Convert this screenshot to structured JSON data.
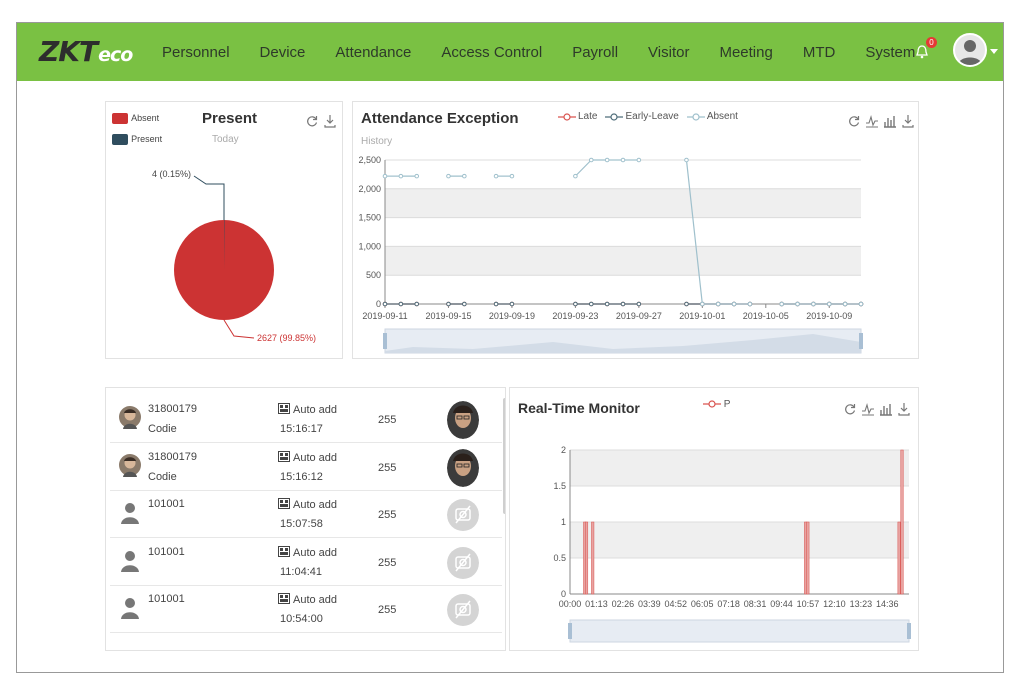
{
  "header": {
    "logo_main": "ZKT",
    "logo_sub": "eco",
    "nav": [
      "Personnel",
      "Device",
      "Attendance",
      "Access Control",
      "Payroll",
      "Visitor",
      "Meeting",
      "MTD",
      "System"
    ],
    "notification_count": "0"
  },
  "present_panel": {
    "title": "Present",
    "subtitle": "Today",
    "legend": [
      "Absent",
      "Present"
    ],
    "colors": {
      "absent": "#cc3333",
      "present": "#2f4d5e"
    },
    "label_present": "4 (0.15%)",
    "label_absent": "2627 (99.85%)"
  },
  "exception_panel": {
    "title": "Attendance Exception",
    "subtitle": "History",
    "legend": [
      "Late",
      "Early-Leave",
      "Absent"
    ],
    "colors": {
      "late": "#d9534f",
      "early_leave": "#4f6d7a",
      "absent": "#9fc0cc"
    }
  },
  "monitor_panel": {
    "title": "Real-Time Monitor",
    "legend": [
      "P"
    ],
    "color": "#d9534f"
  },
  "records": [
    {
      "id": "31800179",
      "name": "Codie",
      "type": "Auto add",
      "time": "15:16:17",
      "device": "255",
      "photo": "face"
    },
    {
      "id": "31800179",
      "name": "Codie",
      "type": "Auto add",
      "time": "15:16:12",
      "device": "255",
      "photo": "face"
    },
    {
      "id": "101001",
      "name": "",
      "type": "Auto add",
      "time": "15:07:58",
      "device": "255",
      "photo": "none"
    },
    {
      "id": "101001",
      "name": "",
      "type": "Auto add",
      "time": "11:04:41",
      "device": "255",
      "photo": "none"
    },
    {
      "id": "101001",
      "name": "",
      "type": "Auto add",
      "time": "10:54:00",
      "device": "255",
      "photo": "none"
    }
  ],
  "chart_data": [
    {
      "type": "pie",
      "title": "Present",
      "subtitle": "Today",
      "labels": [
        "Absent",
        "Present"
      ],
      "values": [
        2627,
        4
      ],
      "percentages": [
        99.85,
        0.15
      ]
    },
    {
      "type": "line",
      "title": "Attendance Exception",
      "subtitle": "History",
      "x": [
        "2019-09-11",
        "2019-09-12",
        "2019-09-13",
        "2019-09-15",
        "2019-09-16",
        "2019-09-18",
        "2019-09-19",
        "2019-09-23",
        "2019-09-24",
        "2019-09-25",
        "2019-09-26",
        "2019-09-27",
        "2019-09-30",
        "2019-10-01",
        "2019-10-02",
        "2019-10-03",
        "2019-10-04",
        "2019-10-06",
        "2019-10-07",
        "2019-10-08",
        "2019-10-09",
        "2019-10-10",
        "2019-10-11"
      ],
      "x_ticks": [
        "2019-09-11",
        "2019-09-15",
        "2019-09-19",
        "2019-09-23",
        "2019-09-27",
        "2019-10-01",
        "2019-10-05",
        "2019-10-09"
      ],
      "series": [
        {
          "name": "Late",
          "values": [
            0,
            0,
            0,
            0,
            0,
            0,
            0,
            0,
            0,
            0,
            0,
            0,
            0,
            0,
            0,
            0,
            0,
            0,
            0,
            0,
            0,
            0,
            0
          ]
        },
        {
          "name": "Early-Leave",
          "values": [
            0,
            0,
            0,
            0,
            0,
            0,
            0,
            0,
            0,
            0,
            0,
            0,
            0,
            0,
            0,
            0,
            0,
            0,
            0,
            0,
            0,
            0,
            0
          ]
        },
        {
          "name": "Absent",
          "values": [
            2220,
            2220,
            2220,
            2220,
            2220,
            2220,
            2220,
            2220,
            2500,
            2500,
            2500,
            2500,
            2500,
            0,
            0,
            0,
            0,
            0,
            0,
            0,
            0,
            0,
            0
          ]
        }
      ],
      "ylim": [
        0,
        2500
      ],
      "y_ticks": [
        "0",
        "500",
        "1,000",
        "1,500",
        "2,000",
        "2,500"
      ],
      "grid": true,
      "legend_position": "top"
    },
    {
      "type": "bar",
      "title": "Real-Time Monitor",
      "x_ticks": [
        "00:00",
        "01:13",
        "02:26",
        "03:39",
        "04:52",
        "06:05",
        "07:18",
        "08:31",
        "09:44",
        "10:57",
        "12:10",
        "13:23",
        "14:36"
      ],
      "ylim": [
        0,
        2
      ],
      "y_ticks": [
        "0",
        "0.5",
        "1",
        "1.5",
        "2"
      ],
      "series": [
        {
          "name": "P",
          "events": [
            {
              "time_minutes": 40,
              "value": 1
            },
            {
              "time_minutes": 45,
              "value": 1
            },
            {
              "time_minutes": 62,
              "value": 1
            },
            {
              "time_minutes": 650,
              "value": 1
            },
            {
              "time_minutes": 656,
              "value": 1
            },
            {
              "time_minutes": 908,
              "value": 1
            },
            {
              "time_minutes": 916,
              "value": 2
            }
          ]
        }
      ],
      "grid": true,
      "legend_position": "top"
    }
  ]
}
